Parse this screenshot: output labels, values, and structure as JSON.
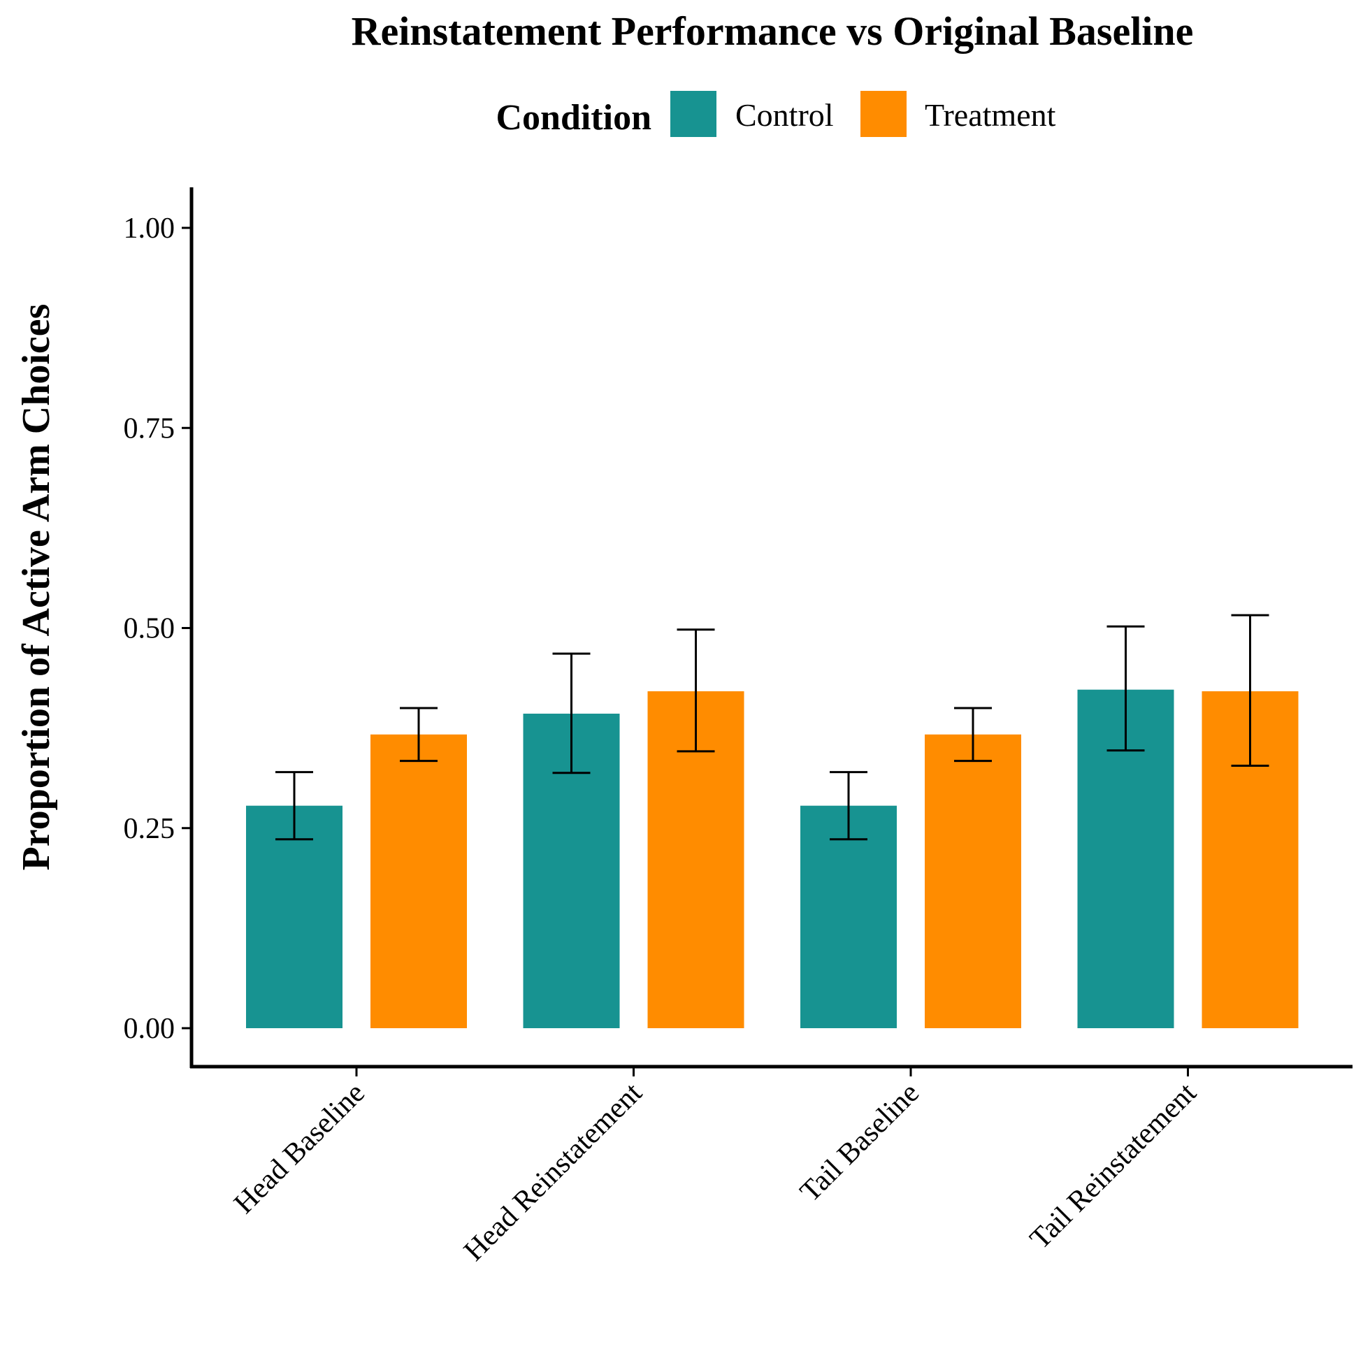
{
  "chart_data": {
    "type": "bar",
    "title": "Reinstatement Performance vs Original Baseline",
    "xlabel": "",
    "ylabel": "Proportion of Active Arm Choices",
    "categories": [
      "Head Baseline",
      "Head Reinstatement",
      "Tail Baseline",
      "Tail Reinstatement"
    ],
    "yticks": [
      "0.00",
      "0.25",
      "0.50",
      "0.75",
      "1.00"
    ],
    "ylim": [
      -0.05,
      1.05
    ],
    "legend": {
      "title": "Condition",
      "position": "top"
    },
    "series": [
      {
        "name": "Control",
        "color": "#179391",
        "values": [
          0.278,
          0.393,
          0.278,
          0.423
        ],
        "error_low": [
          0.236,
          0.319,
          0.236,
          0.347
        ],
        "error_high": [
          0.32,
          0.468,
          0.32,
          0.502
        ]
      },
      {
        "name": "Treatment",
        "color": "#FF8C00",
        "values": [
          0.367,
          0.421,
          0.367,
          0.421
        ],
        "error_low": [
          0.334,
          0.346,
          0.334,
          0.328
        ],
        "error_high": [
          0.4,
          0.498,
          0.4,
          0.516
        ]
      }
    ],
    "grid": false
  }
}
